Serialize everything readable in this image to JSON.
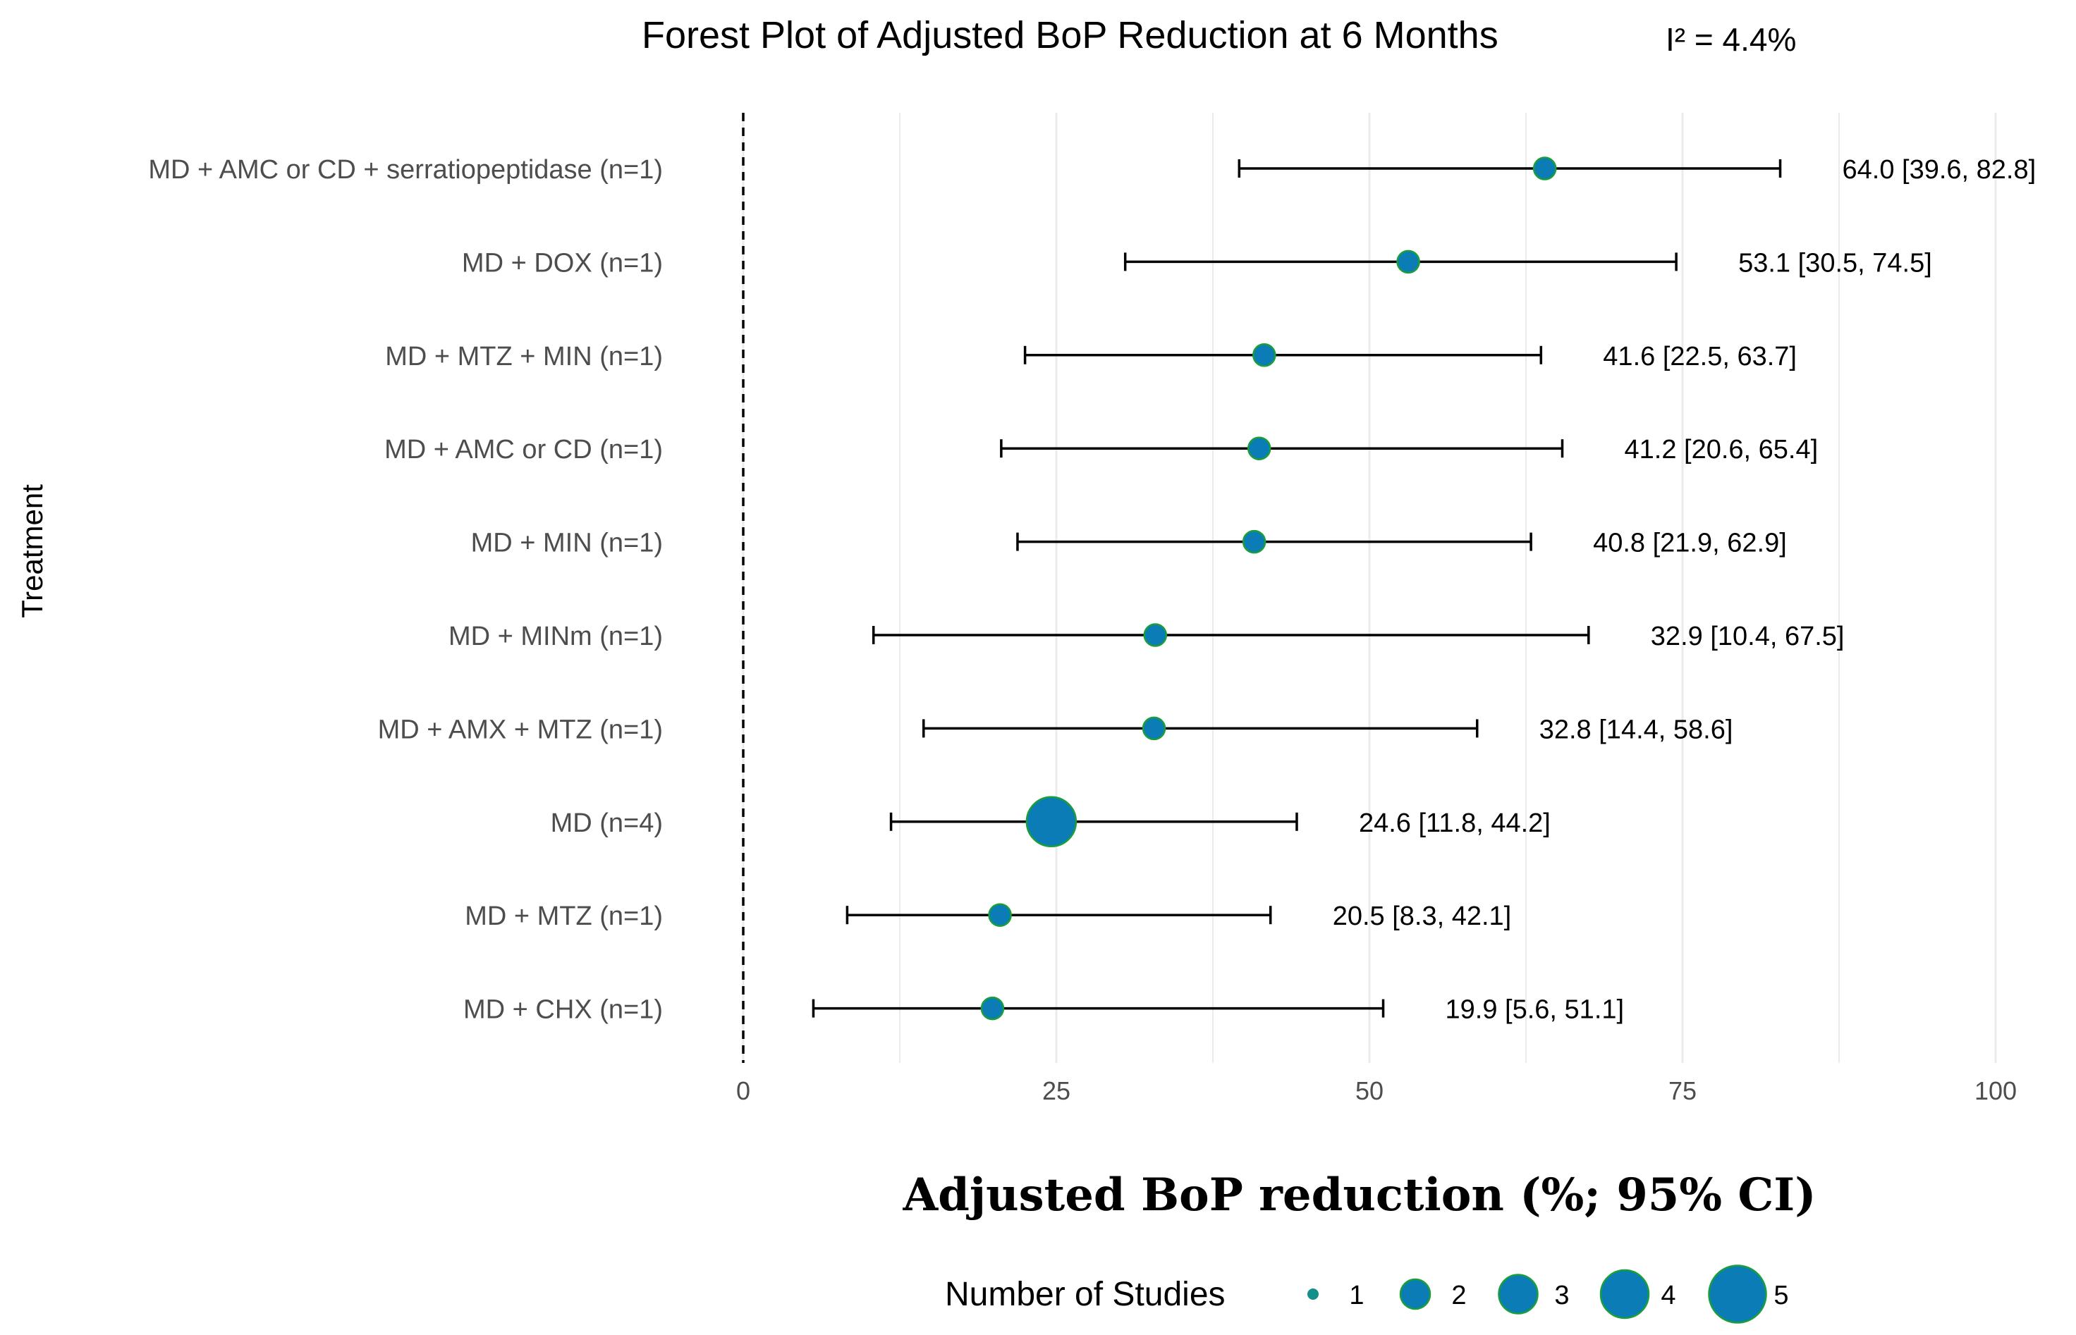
{
  "chart_data": {
    "type": "forest",
    "title": "Forest Plot of Adjusted BoP Reduction at 6 Months",
    "heterogeneity_label": "I² = 4.4%",
    "xlabel": "Adjusted BoP reduction (%; 95% CI)",
    "ylabel": "Treatment",
    "xlim": [
      0,
      100
    ],
    "xticks": [
      "0",
      "25",
      "50",
      "75",
      "100"
    ],
    "reference_line": 0,
    "colors": {
      "point": "#0b7cb5",
      "point_outline": "#1a9e3c",
      "legend_small": "#168f8a",
      "grid": "#ebebeb",
      "line": "#000000"
    },
    "rows": [
      {
        "label": "MD + AMC or CD + serratiopeptidase (n=1)",
        "estimate": 64.0,
        "lower": 39.6,
        "upper": 82.8,
        "n": 1,
        "annotation": "64.0 [39.6, 82.8]"
      },
      {
        "label": "MD + DOX (n=1)",
        "estimate": 53.1,
        "lower": 30.5,
        "upper": 74.5,
        "n": 1,
        "annotation": "53.1 [30.5, 74.5]"
      },
      {
        "label": "MD + MTZ + MIN (n=1)",
        "estimate": 41.6,
        "lower": 22.5,
        "upper": 63.7,
        "n": 1,
        "annotation": "41.6 [22.5, 63.7]"
      },
      {
        "label": "MD + AMC or CD (n=1)",
        "estimate": 41.2,
        "lower": 20.6,
        "upper": 65.4,
        "n": 1,
        "annotation": "41.2 [20.6, 65.4]"
      },
      {
        "label": "MD + MIN (n=1)",
        "estimate": 40.8,
        "lower": 21.9,
        "upper": 62.9,
        "n": 1,
        "annotation": "40.8 [21.9, 62.9]"
      },
      {
        "label": "MD + MINm (n=1)",
        "estimate": 32.9,
        "lower": 10.4,
        "upper": 67.5,
        "n": 1,
        "annotation": "32.9 [10.4, 67.5]"
      },
      {
        "label": "MD + AMX + MTZ (n=1)",
        "estimate": 32.8,
        "lower": 14.4,
        "upper": 58.6,
        "n": 1,
        "annotation": "32.8 [14.4, 58.6]"
      },
      {
        "label": "MD (n=4)",
        "estimate": 24.6,
        "lower": 11.8,
        "upper": 44.2,
        "n": 4,
        "annotation": "24.6 [11.8, 44.2]"
      },
      {
        "label": "MD + MTZ (n=1)",
        "estimate": 20.5,
        "lower": 8.3,
        "upper": 42.1,
        "n": 1,
        "annotation": "20.5 [8.3, 42.1]"
      },
      {
        "label": "MD + CHX (n=1)",
        "estimate": 19.9,
        "lower": 5.6,
        "upper": 51.1,
        "n": 1,
        "annotation": "19.9 [5.6, 51.1]"
      }
    ],
    "legend": {
      "title": "Number of Studies",
      "position": "bottom",
      "entries": [
        {
          "n": 1,
          "label": "1"
        },
        {
          "n": 2,
          "label": "2"
        },
        {
          "n": 3,
          "label": "3"
        },
        {
          "n": 4,
          "label": "4"
        },
        {
          "n": 5,
          "label": "5"
        }
      ]
    }
  }
}
